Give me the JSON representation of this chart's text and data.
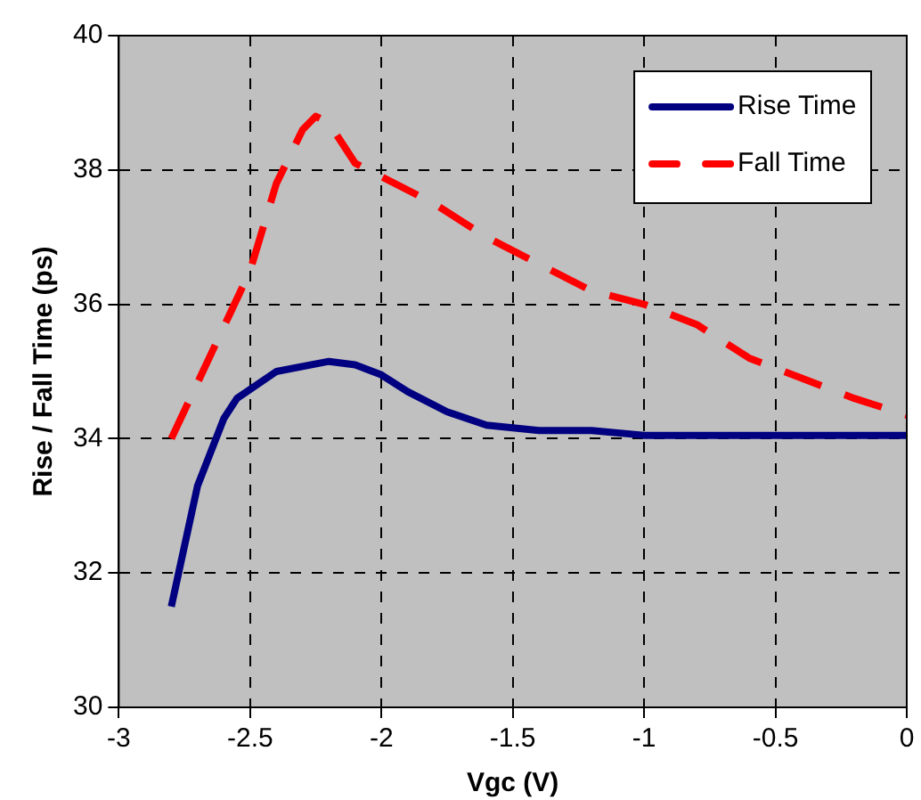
{
  "chart_data": {
    "type": "line",
    "xlabel": "Vgc (V)",
    "ylabel": "Rise / Fall Time (ps)",
    "xlim": [
      -3,
      0
    ],
    "xticks": [
      -3,
      -2.5,
      -2,
      -1.5,
      -1,
      -0.5,
      0
    ],
    "ylim": [
      30,
      40
    ],
    "yticks": [
      30,
      32,
      34,
      36,
      38,
      40
    ],
    "grid": true,
    "legend": "top right",
    "marker": "none",
    "series": [
      {
        "name": "Rise Time",
        "color": "#000080",
        "line_style": "solid",
        "x": [
          -2.8,
          -2.7,
          -2.6,
          -2.55,
          -2.4,
          -2.2,
          -2.1,
          -2.0,
          -1.9,
          -1.75,
          -1.6,
          -1.4,
          -1.2,
          -1.0,
          0
        ],
        "values": [
          31.5,
          33.3,
          34.3,
          34.6,
          35.0,
          35.15,
          35.1,
          34.95,
          34.7,
          34.4,
          34.2,
          34.12,
          34.12,
          34.05,
          34.05
        ]
      },
      {
        "name": "Fall Time",
        "color": "#ff0000",
        "line_style": "dashed",
        "x": [
          -2.8,
          -2.5,
          -2.4,
          -2.3,
          -2.25,
          -2.2,
          -2.1,
          -2.0,
          -1.8,
          -1.6,
          -1.4,
          -1.2,
          -1.0,
          -0.8,
          -0.6,
          -0.4,
          -0.2,
          0
        ],
        "values": [
          34.0,
          36.5,
          37.8,
          38.6,
          38.8,
          38.7,
          38.1,
          37.9,
          37.5,
          37.0,
          36.6,
          36.2,
          36.0,
          35.7,
          35.2,
          34.9,
          34.6,
          34.35
        ]
      }
    ]
  }
}
